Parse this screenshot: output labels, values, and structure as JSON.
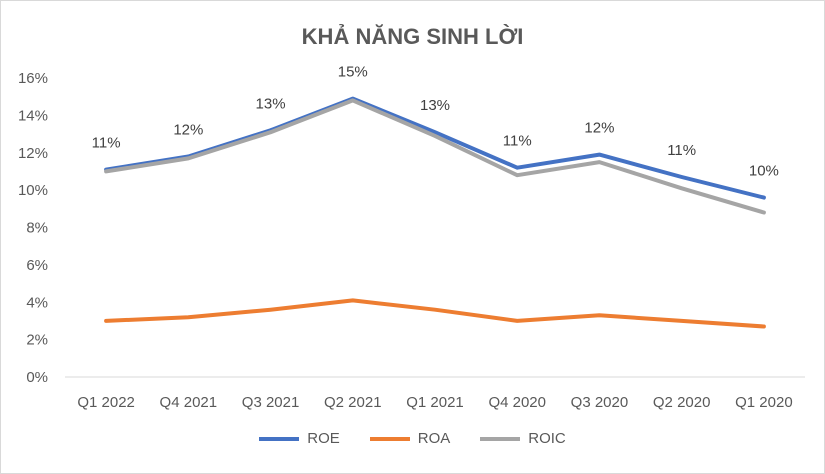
{
  "chart_data": {
    "type": "line",
    "title": "KHẢ NĂNG SINH LỜI",
    "categories": [
      "Q1 2022",
      "Q4 2021",
      "Q3 2021",
      "Q2 2021",
      "Q1 2021",
      "Q4 2020",
      "Q3 2020",
      "Q2 2020",
      "Q1 2020"
    ],
    "yticks": [
      "0%",
      "2%",
      "4%",
      "6%",
      "8%",
      "10%",
      "12%",
      "14%",
      "16%"
    ],
    "ylim": [
      0,
      16
    ],
    "xlabel": "",
    "ylabel": "",
    "legend_position": "bottom",
    "series": [
      {
        "name": "ROE",
        "color": "#4472c4",
        "values": [
          11.1,
          11.8,
          13.2,
          14.9,
          13.1,
          11.2,
          11.9,
          10.7,
          9.6
        ]
      },
      {
        "name": "ROA",
        "color": "#ed7d31",
        "values": [
          3.0,
          3.2,
          3.6,
          4.1,
          3.6,
          3.0,
          3.3,
          3.0,
          2.7
        ]
      },
      {
        "name": "ROIC",
        "color": "#a5a5a5",
        "values": [
          11.0,
          11.7,
          13.1,
          14.8,
          12.9,
          10.8,
          11.5,
          10.1,
          8.8
        ]
      }
    ],
    "data_labels": [
      "11%",
      "12%",
      "13%",
      "15%",
      "13%",
      "11%",
      "12%",
      "11%",
      "10%"
    ]
  }
}
